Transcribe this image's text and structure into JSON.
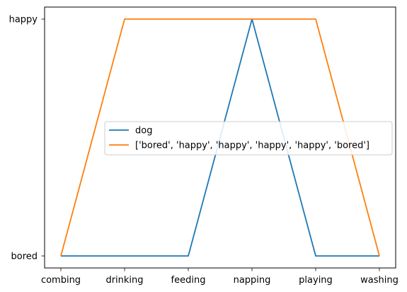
{
  "chart_data": {
    "type": "line",
    "categories": [
      "combing",
      "drinking",
      "feeding",
      "napping",
      "playing",
      "washing"
    ],
    "y_categories": [
      "bored",
      "happy"
    ],
    "series": [
      {
        "name": "dog",
        "color": "#1f77b4",
        "values": [
          "bored",
          "bored",
          "bored",
          "happy",
          "bored",
          "bored"
        ]
      },
      {
        "name": "['bored', 'happy', 'happy', 'happy', 'happy', 'bored']",
        "color": "#ff7f0e",
        "values": [
          "bored",
          "happy",
          "happy",
          "happy",
          "happy",
          "bored"
        ]
      }
    ],
    "legend_position": "center-right",
    "grid": false
  }
}
